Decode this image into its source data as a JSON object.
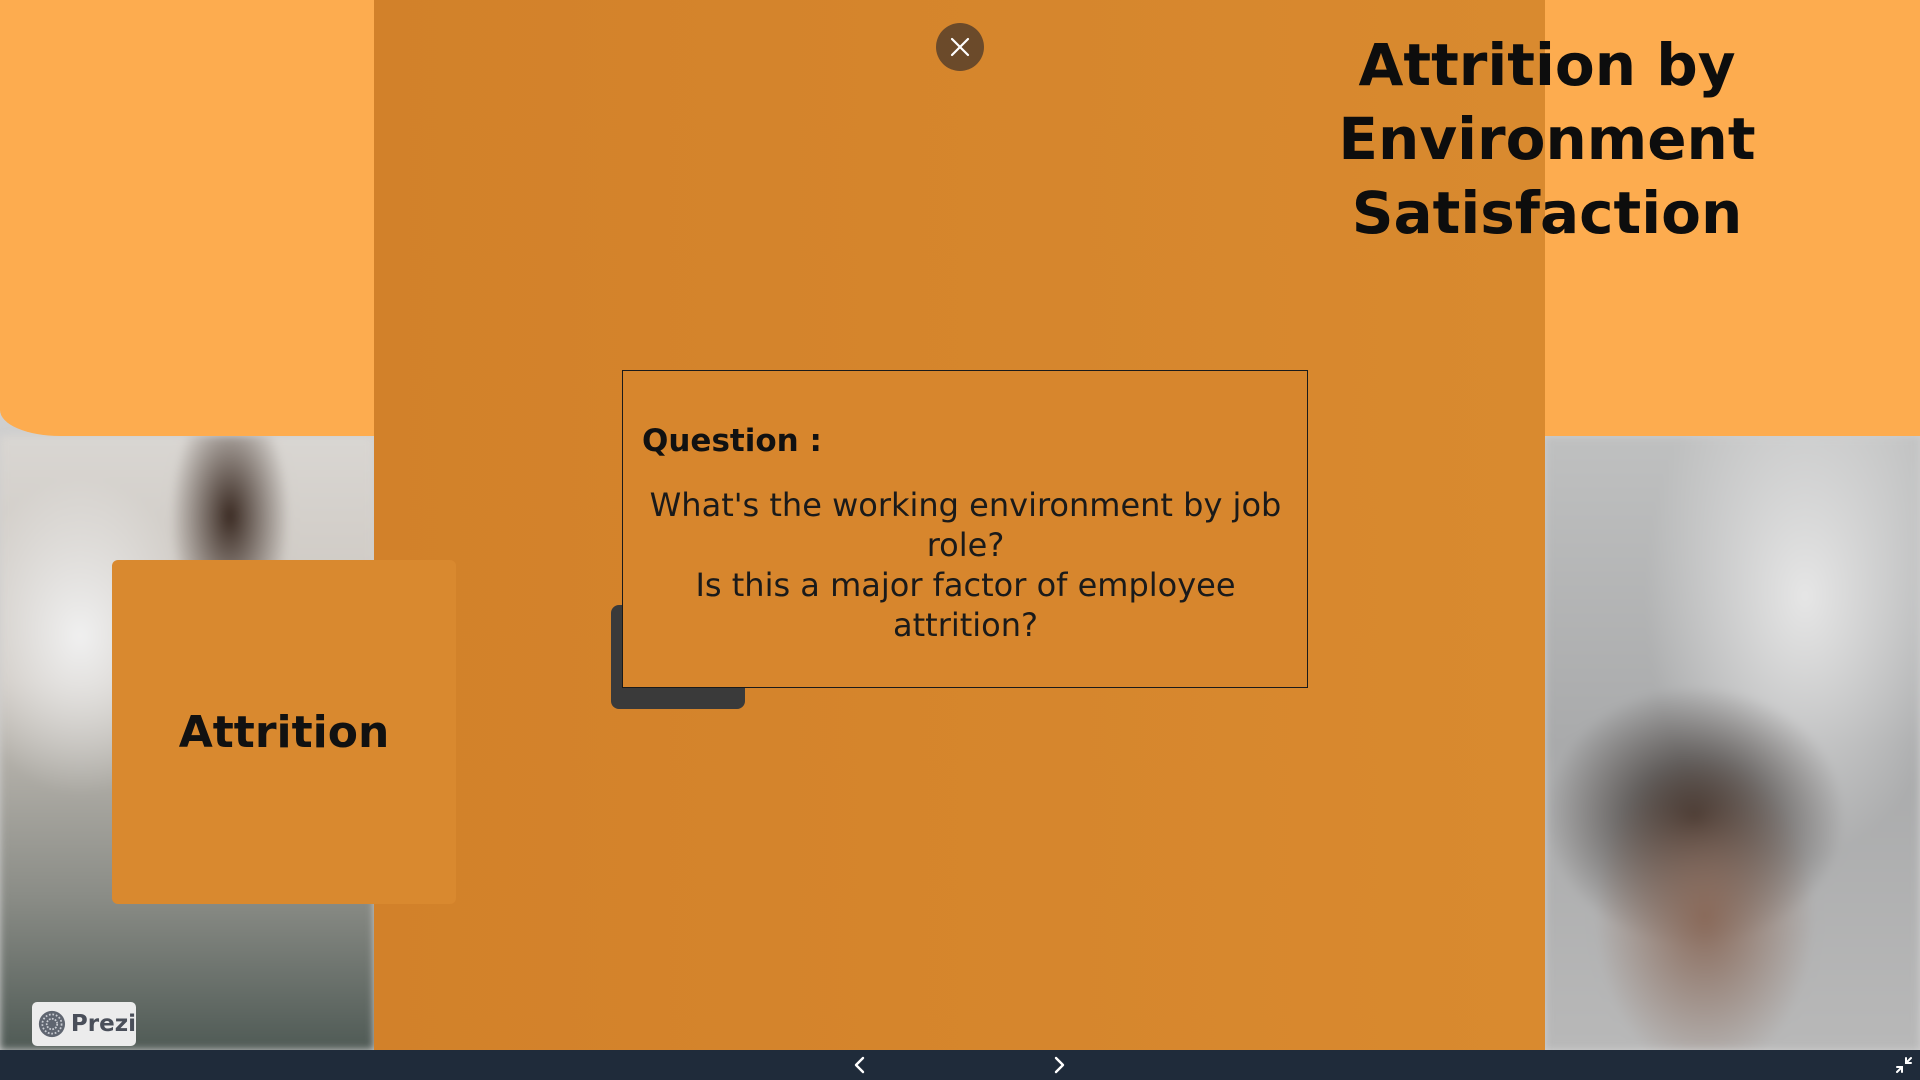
{
  "slide": {
    "title_lines": [
      "Attrition by",
      "Environment",
      "Satisfaction"
    ],
    "attrition_card_label": "Attrition",
    "question_label": "Question :",
    "question_lines": [
      "What's the working environment by job role?",
      "Is this a major factor of employee attrition?"
    ]
  },
  "branding": {
    "logo_text": "Prezi"
  },
  "controls": {
    "close_icon": "close-icon",
    "prev_icon": "chevron-left-icon",
    "next_icon": "chevron-right-icon",
    "fullscreen_icon": "exit-fullscreen-icon"
  },
  "colors": {
    "peach": "#fdac4f",
    "orange_panel": "#d7862d",
    "close_button": "#6b4a2a",
    "bottom_bar": "#1f2b3a"
  }
}
